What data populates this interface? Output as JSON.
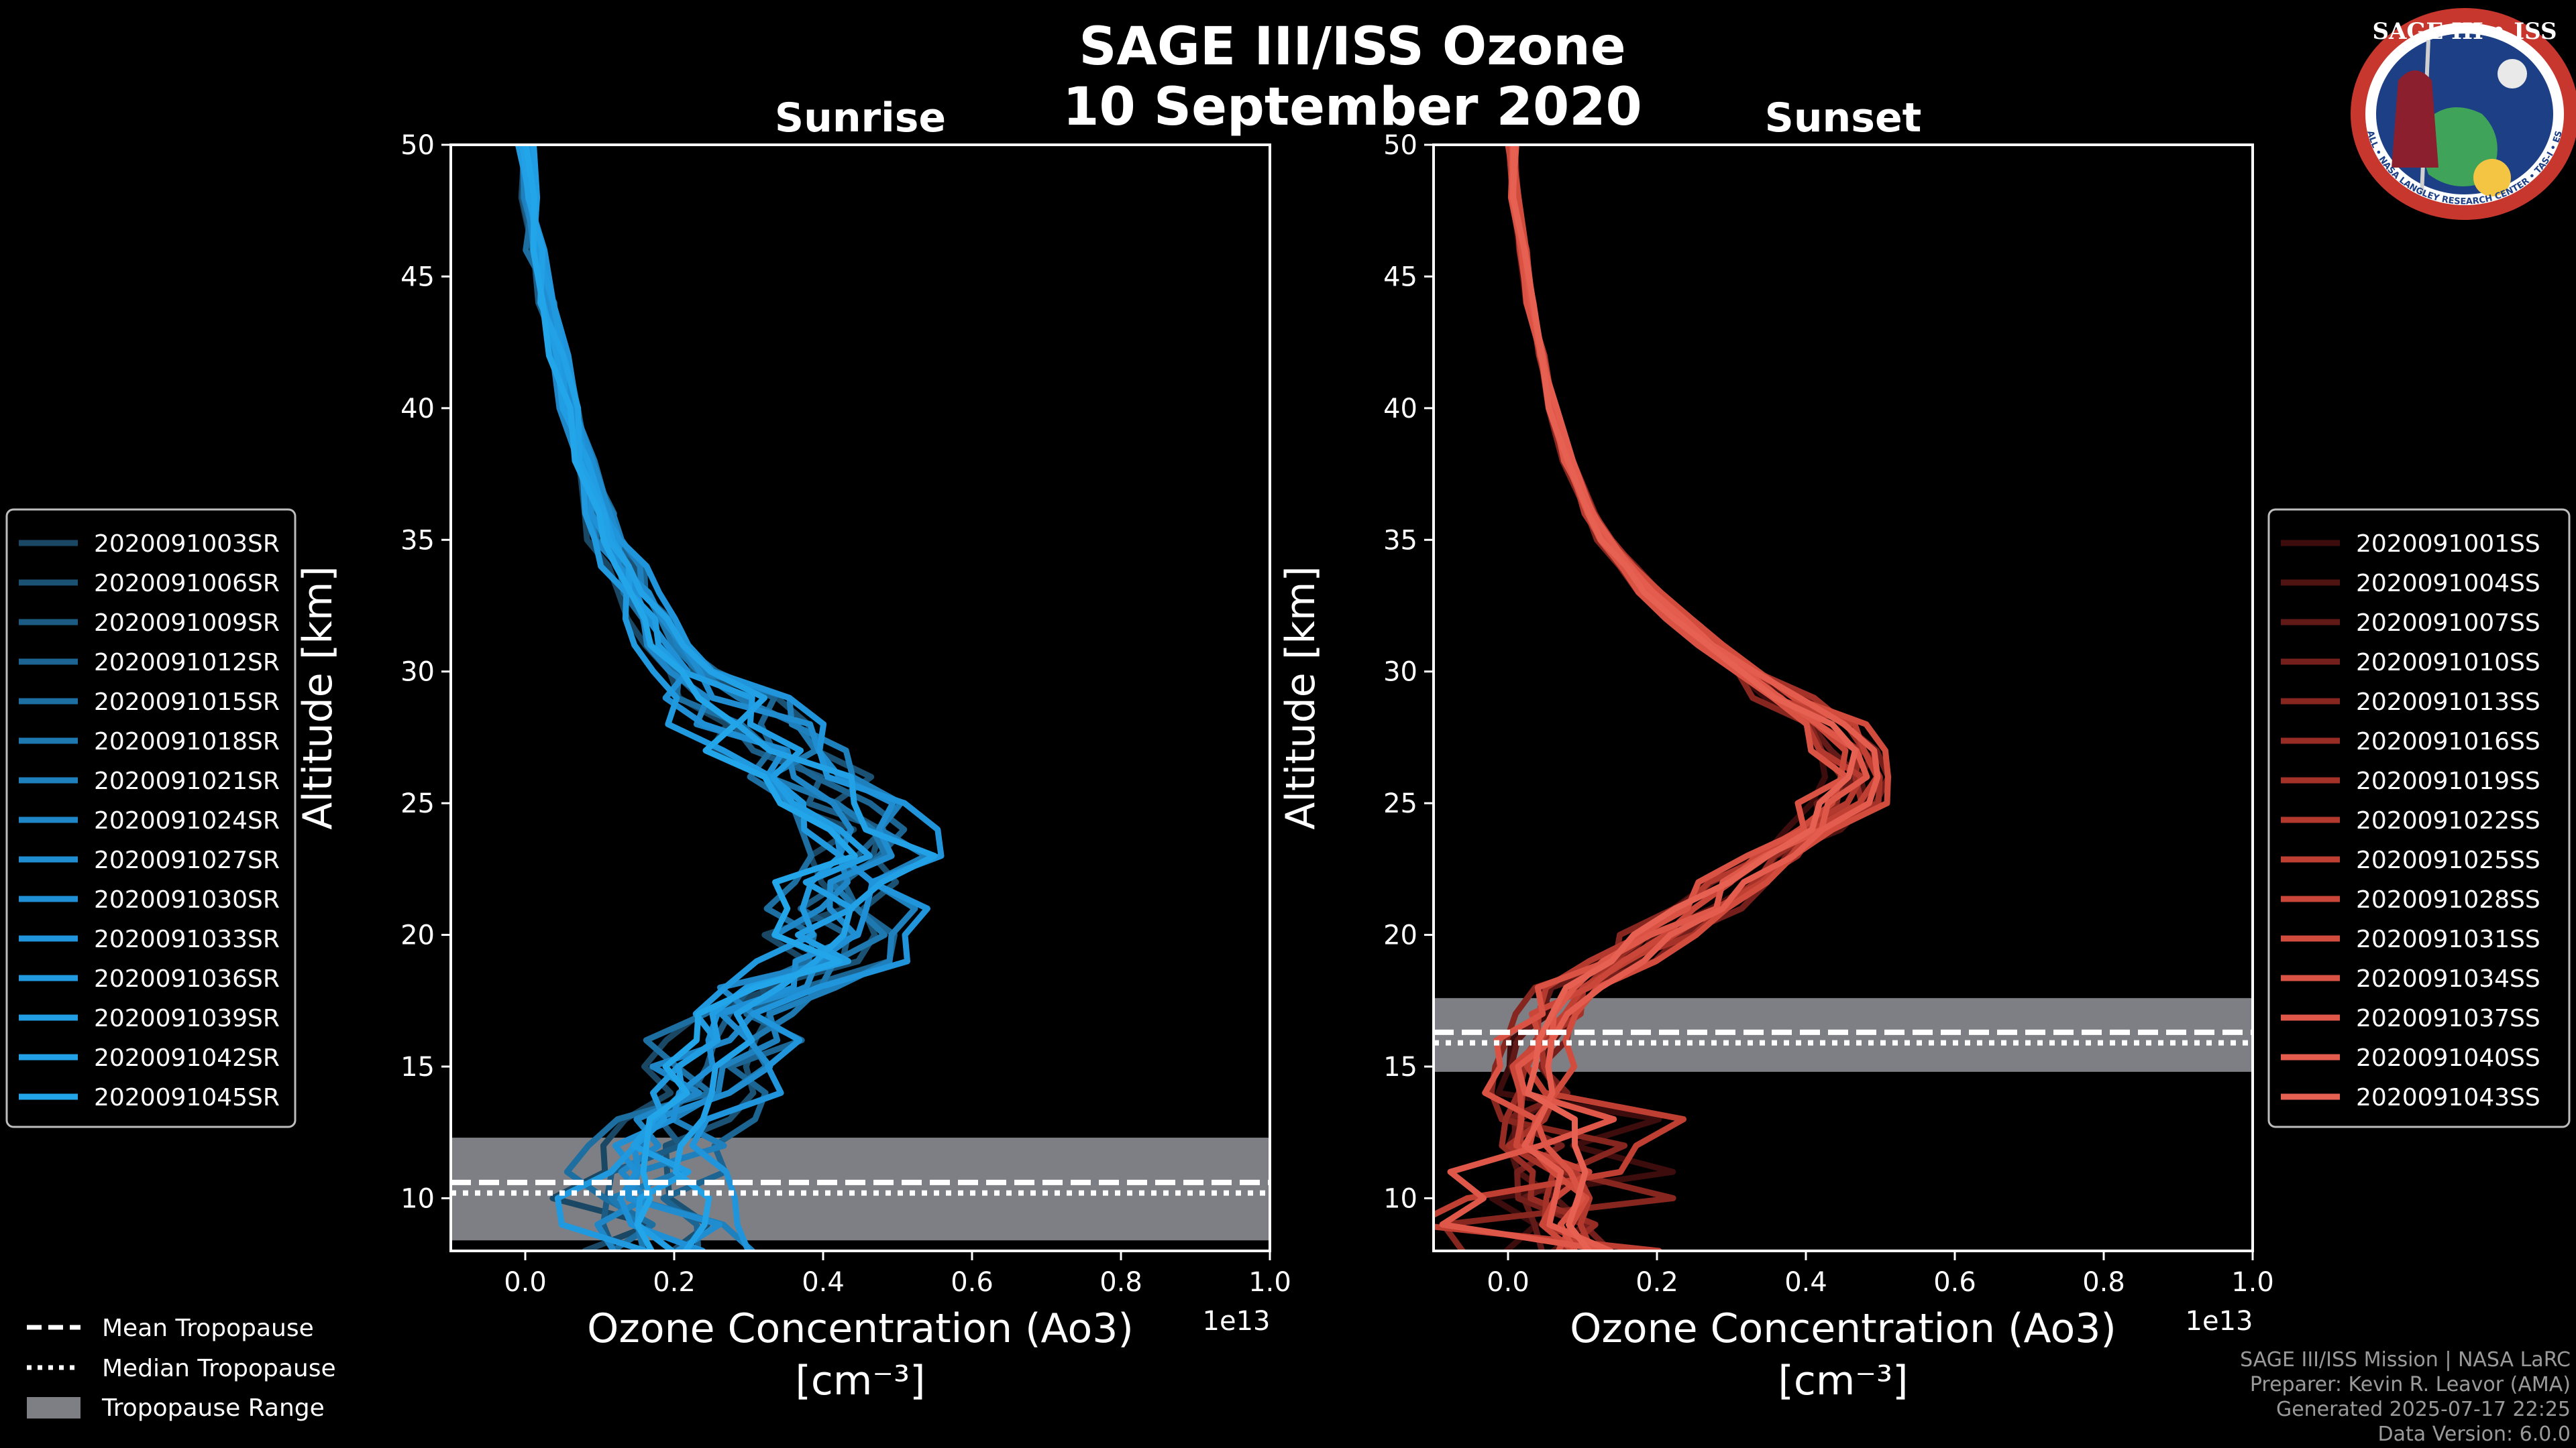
{
  "figure": {
    "title_line1": "SAGE III/ISS Ozone",
    "title_line2": "10 September 2020",
    "logo": {
      "text": "SAGE III • ISS",
      "subtext": "BALL • NASA LANGLEY RESEARCH CENTER • TAS-I • ESA"
    },
    "credits": [
      "SAGE III/ISS Mission | NASA LaRC",
      "Preparer: Kevin R. Leavor (AMA)",
      "Generated 2025-07-17 22:25",
      "Data Version: 6.0.0"
    ],
    "tropopause_legend": [
      {
        "label": "Mean Tropopause",
        "style": "dashed"
      },
      {
        "label": "Median Tropopause",
        "style": "dotted"
      },
      {
        "label": "Tropopause Range",
        "style": "patch"
      }
    ],
    "colors": {
      "sunrise": "#1f90d6",
      "sunset": "#e0574a",
      "tropopause_band": "#7d7f84",
      "axes": "#ffffff"
    }
  },
  "chart_data": [
    {
      "type": "line",
      "title": "Sunrise",
      "xlabel": "Ozone Concentration (Ao3)",
      "xunit": "[cm⁻³]",
      "ylabel": "Altitude [km]",
      "xlim": [
        -0.1,
        1.0
      ],
      "ylim": [
        8,
        50
      ],
      "x_scale_label": "1e13",
      "xticks": [
        0.0,
        0.2,
        0.4,
        0.6,
        0.8,
        1.0
      ],
      "xtick_labels": [
        "0.0",
        "0.2",
        "0.4",
        "0.6",
        "0.8",
        "1.0"
      ],
      "yticks": [
        10,
        15,
        20,
        25,
        30,
        35,
        40,
        45,
        50
      ],
      "ytick_labels": [
        "10",
        "15",
        "20",
        "25",
        "30",
        "35",
        "40",
        "45",
        "50"
      ],
      "tropopause": {
        "mean": 10.6,
        "median": 10.2,
        "range": [
          8.4,
          12.3
        ]
      },
      "profile_altitudes": [
        8,
        9,
        10,
        11,
        12,
        13,
        14,
        15,
        16,
        17,
        18,
        19,
        20,
        21,
        22,
        23,
        24,
        25,
        26,
        27,
        28,
        29,
        30,
        31,
        32,
        33,
        34,
        35,
        36,
        38,
        40,
        42,
        44,
        46,
        48,
        50
      ],
      "mean_profile": [
        0.2,
        0.18,
        0.15,
        0.16,
        0.18,
        0.2,
        0.24,
        0.26,
        0.27,
        0.29,
        0.34,
        0.4,
        0.42,
        0.43,
        0.42,
        0.45,
        0.45,
        0.41,
        0.37,
        0.33,
        0.3,
        0.26,
        0.22,
        0.19,
        0.17,
        0.15,
        0.13,
        0.11,
        0.1,
        0.08,
        0.06,
        0.045,
        0.03,
        0.015,
        0.005,
        0.0
      ],
      "series": [
        {
          "name": "2020091003SR",
          "spread": -0.05
        },
        {
          "name": "2020091006SR",
          "spread": 0.03
        },
        {
          "name": "2020091009SR",
          "spread": -0.02
        },
        {
          "name": "2020091012SR",
          "spread": 0.05
        },
        {
          "name": "2020091015SR",
          "spread": -0.04
        },
        {
          "name": "2020091018SR",
          "spread": 0.01
        },
        {
          "name": "2020091021SR",
          "spread": 0.04
        },
        {
          "name": "2020091024SR",
          "spread": -0.03
        },
        {
          "name": "2020091027SR",
          "spread": 0.02
        },
        {
          "name": "2020091030SR",
          "spread": -0.01
        },
        {
          "name": "2020091033SR",
          "spread": 0.06
        },
        {
          "name": "2020091036SR",
          "spread": -0.06
        },
        {
          "name": "2020091039SR",
          "spread": 0.0
        },
        {
          "name": "2020091042SR",
          "spread": 0.035
        },
        {
          "name": "2020091045SR",
          "spread": -0.025
        }
      ]
    },
    {
      "type": "line",
      "title": "Sunset",
      "xlabel": "Ozone Concentration (Ao3)",
      "xunit": "[cm⁻³]",
      "ylabel": "Altitude [km]",
      "xlim": [
        -0.1,
        1.0
      ],
      "ylim": [
        8,
        50
      ],
      "x_scale_label": "1e13",
      "xticks": [
        0.0,
        0.2,
        0.4,
        0.6,
        0.8,
        1.0
      ],
      "xtick_labels": [
        "0.0",
        "0.2",
        "0.4",
        "0.6",
        "0.8",
        "1.0"
      ],
      "yticks": [
        10,
        15,
        20,
        25,
        30,
        35,
        40,
        45,
        50
      ],
      "ytick_labels": [
        "10",
        "15",
        "20",
        "25",
        "30",
        "35",
        "40",
        "45",
        "50"
      ],
      "tropopause": {
        "mean": 16.3,
        "median": 15.9,
        "range": [
          14.8,
          17.6
        ]
      },
      "profile_altitudes": [
        8,
        9,
        10,
        11,
        12,
        13,
        14,
        15,
        16,
        17,
        18,
        19,
        20,
        21,
        22,
        23,
        24,
        25,
        26,
        27,
        28,
        29,
        30,
        31,
        32,
        33,
        34,
        35,
        36,
        38,
        40,
        42,
        44,
        46,
        48,
        50
      ],
      "mean_profile": [
        0.09,
        0.07,
        0.06,
        0.06,
        0.04,
        0.04,
        0.03,
        0.03,
        0.04,
        0.06,
        0.09,
        0.15,
        0.2,
        0.26,
        0.31,
        0.36,
        0.41,
        0.45,
        0.47,
        0.46,
        0.43,
        0.37,
        0.32,
        0.27,
        0.23,
        0.19,
        0.16,
        0.13,
        0.11,
        0.08,
        0.06,
        0.045,
        0.03,
        0.02,
        0.01,
        0.005
      ],
      "series": [
        {
          "name": "2020091001SS",
          "spread": -0.02
        },
        {
          "name": "2020091004SS",
          "spread": 0.015
        },
        {
          "name": "2020091007SS",
          "spread": -0.01
        },
        {
          "name": "2020091010SS",
          "spread": 0.025
        },
        {
          "name": "2020091013SS",
          "spread": -0.025
        },
        {
          "name": "2020091016SS",
          "spread": 0.005
        },
        {
          "name": "2020091019SS",
          "spread": 0.02
        },
        {
          "name": "2020091022SS",
          "spread": -0.015
        },
        {
          "name": "2020091025SS",
          "spread": 0.01
        },
        {
          "name": "2020091028SS",
          "spread": -0.005
        },
        {
          "name": "2020091031SS",
          "spread": 0.03
        },
        {
          "name": "2020091034SS",
          "spread": -0.03
        },
        {
          "name": "2020091037SS",
          "spread": 0.0
        },
        {
          "name": "2020091040SS",
          "spread": 0.018
        },
        {
          "name": "2020091043SS",
          "spread": -0.012
        }
      ]
    }
  ]
}
